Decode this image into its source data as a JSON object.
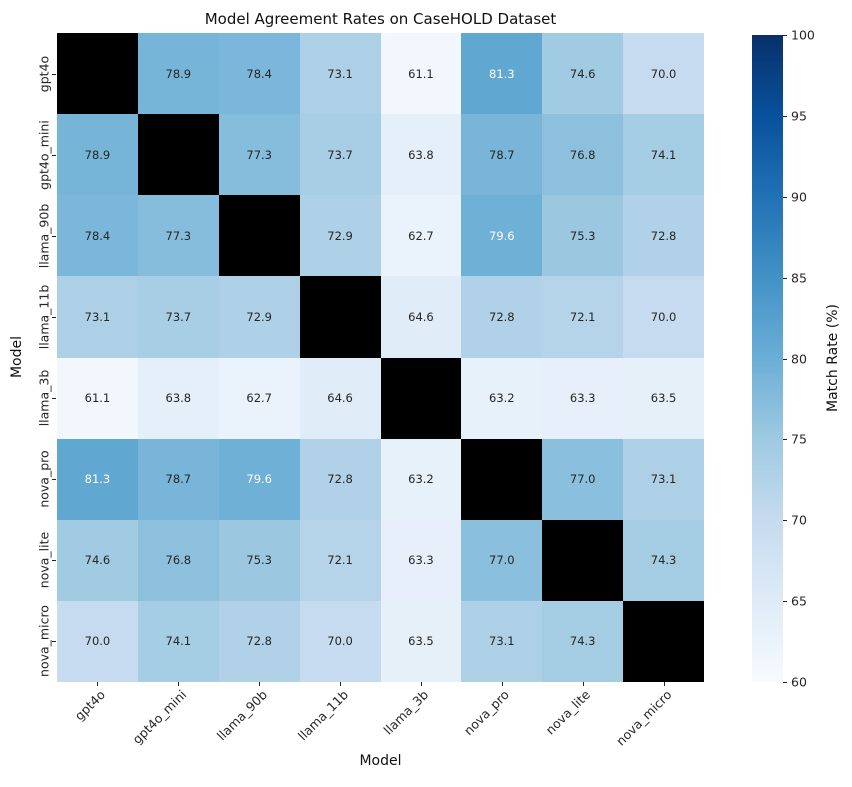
{
  "chart_data": {
    "type": "heatmap",
    "title": "Model Agreement Rates on CaseHOLD Dataset",
    "xlabel": "Model",
    "ylabel": "Model",
    "categories": [
      "gpt4o",
      "gpt4o_mini",
      "llama_90b",
      "llama_11b",
      "llama_3b",
      "nova_pro",
      "nova_lite",
      "nova_micro"
    ],
    "matrix": [
      [
        null,
        78.9,
        78.4,
        73.1,
        61.1,
        81.3,
        74.6,
        70.0
      ],
      [
        78.9,
        null,
        77.3,
        73.7,
        63.8,
        78.7,
        76.8,
        74.1
      ],
      [
        78.4,
        77.3,
        null,
        72.9,
        62.7,
        79.6,
        75.3,
        72.8
      ],
      [
        73.1,
        73.7,
        72.9,
        null,
        64.6,
        72.8,
        72.1,
        70.0
      ],
      [
        61.1,
        63.8,
        62.7,
        64.6,
        null,
        63.2,
        63.3,
        63.5
      ],
      [
        81.3,
        78.7,
        79.6,
        72.8,
        63.2,
        null,
        77.0,
        73.1
      ],
      [
        74.6,
        76.8,
        75.3,
        72.1,
        63.3,
        77.0,
        null,
        74.3
      ],
      [
        70.0,
        74.1,
        72.8,
        70.0,
        63.5,
        73.1,
        74.3,
        null
      ]
    ],
    "vmin": 60,
    "vmax": 100,
    "colormap": "Blues",
    "colormap_stops": [
      [
        0.0,
        "#f7fbff"
      ],
      [
        0.125,
        "#deebf7"
      ],
      [
        0.25,
        "#c6dbef"
      ],
      [
        0.375,
        "#9ecae1"
      ],
      [
        0.5,
        "#6baed6"
      ],
      [
        0.625,
        "#4292c6"
      ],
      [
        0.75,
        "#2171b5"
      ],
      [
        0.875,
        "#08519c"
      ],
      [
        1.0,
        "#08306b"
      ]
    ],
    "diagonal_color": "#000000",
    "annotation_dark_color": "#262626",
    "annotation_light_color": "#ffffff",
    "grid_on": false,
    "colorbar": {
      "label": "Match Rate (%)",
      "ticks": [
        100,
        95,
        90,
        85,
        80,
        75,
        70,
        65,
        60
      ],
      "position": "right"
    }
  }
}
